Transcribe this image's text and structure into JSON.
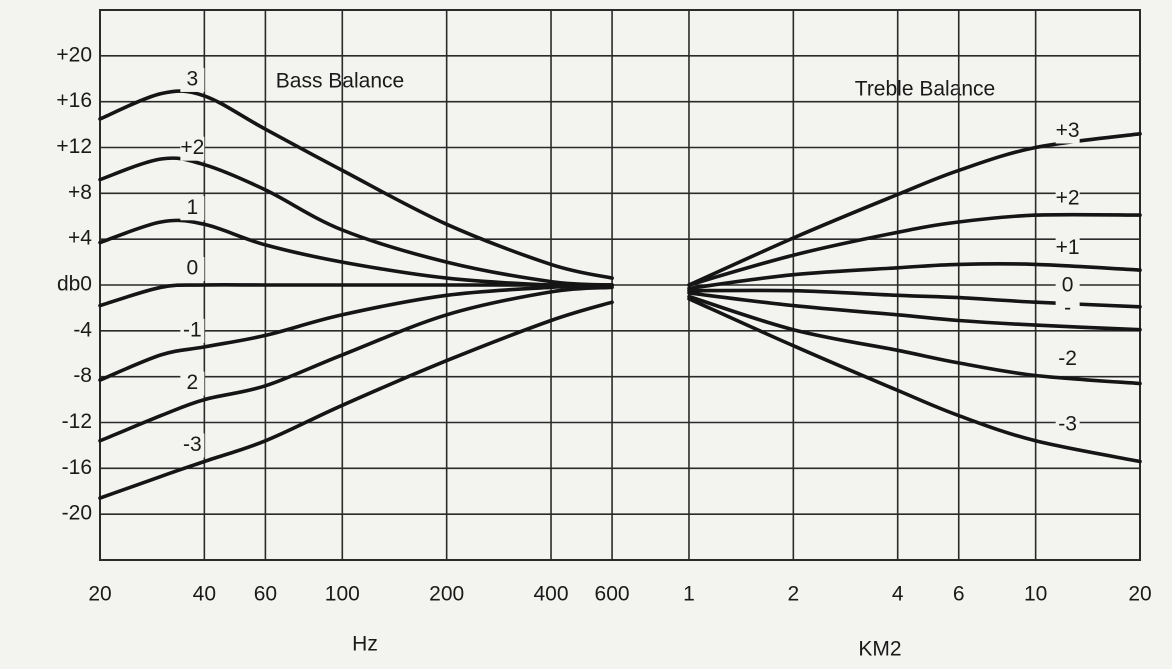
{
  "chart_data": {
    "type": "line",
    "titles": [
      "Bass Balance",
      "Treble Balance"
    ],
    "xlabel": "Hz",
    "xlabel2": "KM2",
    "log_x": true,
    "grid": true,
    "x": [
      20,
      30,
      40,
      60,
      100,
      200,
      400,
      600,
      1000,
      2000,
      4000,
      6000,
      10000,
      20000
    ],
    "xlim": [
      20,
      20000
    ],
    "xticks": [
      20,
      40,
      60,
      100,
      200,
      400,
      600,
      {
        "value": 1000,
        "label": "1"
      },
      {
        "value": 2000,
        "label": "2"
      },
      {
        "value": 4000,
        "label": "4"
      },
      {
        "value": 6000,
        "label": "6"
      },
      {
        "value": 10000,
        "label": "10"
      },
      {
        "value": 20000,
        "label": "20"
      }
    ],
    "ylim": [
      -24,
      24
    ],
    "yticks": [
      {
        "value": 20,
        "label": "+20"
      },
      {
        "value": 16,
        "label": "+16"
      },
      {
        "value": 12,
        "label": "+12"
      },
      {
        "value": 8,
        "label": "+8"
      },
      {
        "value": 4,
        "label": "+4"
      },
      {
        "value": 0,
        "label": "db0"
      },
      -4,
      -8,
      -12,
      -16,
      -20
    ],
    "series": [
      {
        "name": "3",
        "color": "#151515",
        "values": [
          14.5,
          16.7,
          16.5,
          13.6,
          10,
          5.3,
          1.8,
          0.6,
          null,
          null,
          null,
          null,
          null,
          null
        ]
      },
      {
        "name": "+2",
        "color": "#151515",
        "values": [
          9.2,
          11,
          10.5,
          8.3,
          4.8,
          2,
          0.3,
          0,
          null,
          null,
          null,
          null,
          null,
          null
        ]
      },
      {
        "name": "1",
        "color": "#151515",
        "values": [
          3.7,
          5.5,
          5.3,
          3.5,
          2,
          0.6,
          0,
          0,
          null,
          null,
          null,
          null,
          null,
          null
        ]
      },
      {
        "name": "0",
        "color": "#151515",
        "values": [
          -1.8,
          -0.2,
          0,
          0,
          0,
          0,
          0,
          0,
          null,
          null,
          null,
          null,
          null,
          null
        ]
      },
      {
        "name": "-1",
        "color": "#151515",
        "values": [
          -8.3,
          -6.1,
          -5.4,
          -4.4,
          -2.6,
          -0.9,
          -0.2,
          0,
          null,
          null,
          null,
          null,
          null,
          null
        ]
      },
      {
        "name": "2",
        "color": "#151515",
        "values": [
          -13.6,
          -11.4,
          -10,
          -8.8,
          -6.1,
          -2.6,
          -0.6,
          -0.2,
          null,
          null,
          null,
          null,
          null,
          null
        ]
      },
      {
        "name": "-3",
        "color": "#151515",
        "values": [
          -18.6,
          -16.7,
          -15.4,
          -13.6,
          -10.5,
          -6.6,
          -3.1,
          -1.5,
          null,
          null,
          null,
          null,
          null,
          null
        ]
      },
      {
        "name": "+3",
        "color": "#151515",
        "values": [
          null,
          null,
          null,
          null,
          null,
          null,
          null,
          null,
          0,
          4.1,
          7.9,
          10,
          12,
          13.2
        ]
      },
      {
        "name": "+2",
        "color": "#151515",
        "values": [
          null,
          null,
          null,
          null,
          null,
          null,
          null,
          null,
          0,
          2.6,
          4.6,
          5.5,
          6.1,
          6.1
        ]
      },
      {
        "name": "+1",
        "color": "#151515",
        "values": [
          null,
          null,
          null,
          null,
          null,
          null,
          null,
          null,
          -0.3,
          0.9,
          1.5,
          1.8,
          1.8,
          1.3
        ]
      },
      {
        "name": "0",
        "color": "#151515",
        "values": [
          null,
          null,
          null,
          null,
          null,
          null,
          null,
          null,
          -0.5,
          -0.5,
          -0.9,
          -1.1,
          -1.5,
          -1.9
        ]
      },
      {
        "name": "-",
        "color": "#151515",
        "values": [
          null,
          null,
          null,
          null,
          null,
          null,
          null,
          null,
          -0.7,
          -1.8,
          -2.6,
          -3.1,
          -3.5,
          -3.9
        ]
      },
      {
        "name": "-2",
        "color": "#151515",
        "values": [
          null,
          null,
          null,
          null,
          null,
          null,
          null,
          null,
          -1,
          -3.9,
          -5.7,
          -6.8,
          -7.9,
          -8.6
        ]
      },
      {
        "name": "-3",
        "color": "#151515",
        "values": [
          null,
          null,
          null,
          null,
          null,
          null,
          null,
          null,
          -1.2,
          -5.3,
          -9.2,
          -11.4,
          -13.6,
          -15.4
        ]
      }
    ]
  }
}
